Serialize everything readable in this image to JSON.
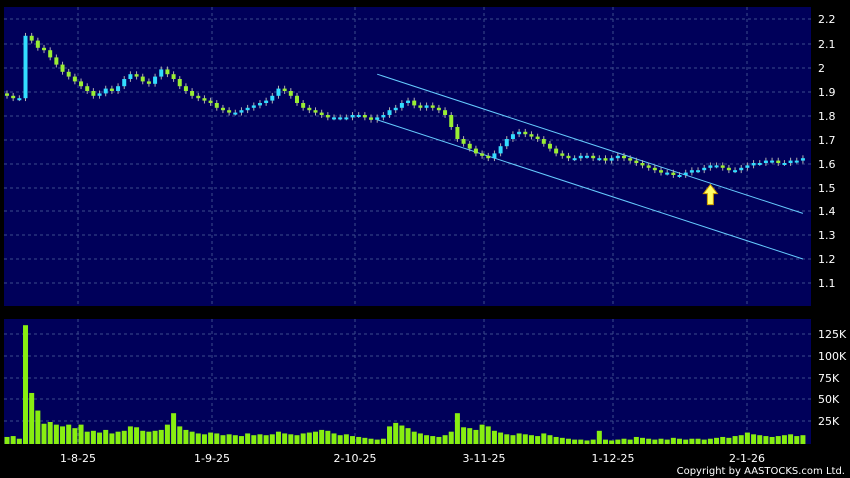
{
  "chart_data": [
    {
      "type": "candlestick",
      "panel": "price",
      "ylim": [
        1.0,
        2.25
      ],
      "y_ticks": [
        "2.2",
        "2.1",
        "2",
        "1.9",
        "1.8",
        "1.7",
        "1.6",
        "1.5",
        "1.4",
        "1.3",
        "1.2",
        "1.1"
      ],
      "x_ticks": [
        "1-8-25",
        "1-9-25",
        "2-10-25",
        "3-11-25",
        "1-12-25",
        "2-1-26"
      ],
      "grid": true,
      "closes": [
        1.88,
        1.87,
        1.87,
        2.13,
        2.11,
        2.08,
        2.07,
        2.04,
        2.01,
        1.98,
        1.96,
        1.94,
        1.92,
        1.9,
        1.88,
        1.89,
        1.91,
        1.9,
        1.92,
        1.95,
        1.97,
        1.96,
        1.94,
        1.93,
        1.96,
        1.99,
        1.97,
        1.95,
        1.92,
        1.9,
        1.88,
        1.87,
        1.86,
        1.85,
        1.83,
        1.82,
        1.81,
        1.81,
        1.82,
        1.83,
        1.84,
        1.85,
        1.86,
        1.88,
        1.91,
        1.9,
        1.88,
        1.85,
        1.83,
        1.82,
        1.81,
        1.8,
        1.79,
        1.79,
        1.79,
        1.79,
        1.8,
        1.8,
        1.79,
        1.78,
        1.79,
        1.8,
        1.82,
        1.83,
        1.85,
        1.86,
        1.84,
        1.83,
        1.84,
        1.83,
        1.82,
        1.8,
        1.75,
        1.7,
        1.68,
        1.66,
        1.64,
        1.63,
        1.62,
        1.64,
        1.67,
        1.7,
        1.72,
        1.73,
        1.72,
        1.71,
        1.7,
        1.68,
        1.66,
        1.64,
        1.63,
        1.62,
        1.62,
        1.63,
        1.63,
        1.62,
        1.62,
        1.61,
        1.62,
        1.63,
        1.62,
        1.61,
        1.6,
        1.59,
        1.58,
        1.57,
        1.56,
        1.56,
        1.55,
        1.55,
        1.56,
        1.57,
        1.57,
        1.58,
        1.59,
        1.59,
        1.58,
        1.57,
        1.57,
        1.58,
        1.59,
        1.6,
        1.6,
        1.61,
        1.61,
        1.6,
        1.6,
        1.61,
        1.61,
        1.62
      ],
      "annotations": [
        {
          "type": "upper_channel_line",
          "from": [
            60,
            1.97
          ],
          "to": [
            129,
            1.39
          ]
        },
        {
          "type": "lower_channel_line",
          "from": [
            60,
            1.78
          ],
          "to": [
            129,
            1.2
          ]
        },
        {
          "type": "arrow",
          "at_bar": 114,
          "value": 1.51,
          "color": "#ffff66"
        }
      ]
    },
    {
      "type": "bar",
      "panel": "volume",
      "ylim": [
        0,
        140000
      ],
      "y_ticks": [
        "125K",
        "100K",
        "75K",
        "50K",
        "25K"
      ],
      "grid": true,
      "values": [
        8000,
        9000,
        6000,
        135000,
        58000,
        38000,
        23000,
        25000,
        22000,
        20000,
        22000,
        18000,
        22000,
        14000,
        15000,
        13000,
        16000,
        12000,
        14000,
        15000,
        20000,
        19000,
        15000,
        14000,
        15000,
        16000,
        22000,
        35000,
        20000,
        16000,
        14000,
        12000,
        11000,
        13000,
        12000,
        10000,
        11000,
        10000,
        9000,
        12000,
        10000,
        11000,
        10000,
        11000,
        14000,
        12000,
        11000,
        10000,
        12000,
        13000,
        14000,
        16000,
        15000,
        12000,
        10000,
        11000,
        9000,
        8000,
        7000,
        6000,
        5000,
        6000,
        20000,
        24000,
        21000,
        18000,
        14000,
        12000,
        10000,
        9000,
        8000,
        10000,
        14000,
        35000,
        19000,
        18000,
        16000,
        22000,
        20000,
        15000,
        13000,
        11000,
        10000,
        12000,
        11000,
        10000,
        9000,
        12000,
        10000,
        8000,
        7000,
        6000,
        5000,
        5000,
        4000,
        5000,
        15000,
        5000,
        4000,
        5000,
        6000,
        5000,
        8000,
        7000,
        6000,
        5000,
        6000,
        5000,
        7000,
        6000,
        5000,
        6000,
        6000,
        5000,
        6000,
        7000,
        8000,
        7000,
        9000,
        10000,
        13000,
        11000,
        10000,
        9000,
        8000,
        9000,
        10000,
        11000,
        9000,
        10000
      ]
    }
  ],
  "footer": {
    "copyright": "Copyright by AASTOCKS.com Ltd."
  },
  "colors": {
    "background": "#000000",
    "plot_background": "#00005a",
    "grid": "#3c4c8c",
    "up_candle": "#33ddff",
    "down_candle": "#99ee33",
    "wick": "#b0b0b0",
    "volume": "#88ee11",
    "channel": "#66ccff",
    "arrow": "#ffff66"
  }
}
